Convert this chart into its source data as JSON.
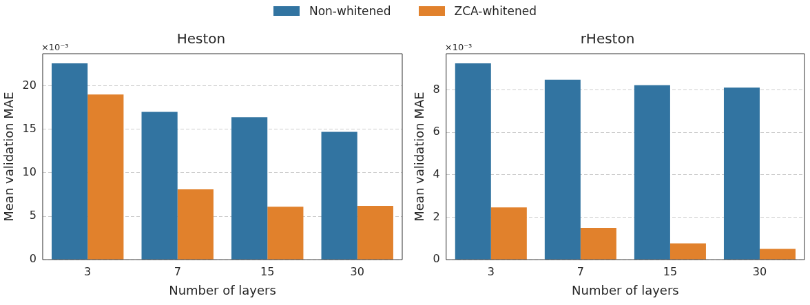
{
  "chart_data": [
    {
      "type": "bar",
      "title": "Heston",
      "xlabel": "Number of layers",
      "ylabel": "Mean validation MAE",
      "annotations": [
        "×10⁻³"
      ],
      "categories": [
        "3",
        "7",
        "15",
        "30"
      ],
      "series": [
        {
          "name": "Non-whitened",
          "color": "#3274a1",
          "values": [
            22.6,
            17.0,
            16.4,
            14.7
          ]
        },
        {
          "name": "ZCA-whitened",
          "color": "#e1812c",
          "values": [
            19.0,
            8.1,
            6.1,
            6.2
          ]
        }
      ],
      "ylim": [
        0,
        23.7
      ],
      "yticks": [
        0,
        5,
        10,
        15,
        20
      ],
      "grid": "y",
      "legend": "top"
    },
    {
      "type": "bar",
      "title": "rHeston",
      "xlabel": "Number of layers",
      "ylabel": "Mean validation MAE",
      "annotations": [
        "×10⁻³"
      ],
      "categories": [
        "3",
        "7",
        "15",
        "30"
      ],
      "series": [
        {
          "color": "#3274a1",
          "values": [
            9.25,
            8.48,
            8.22,
            8.1
          ]
        },
        {
          "color": "#e1812c",
          "values": [
            2.46,
            1.5,
            0.77,
            0.51
          ]
        }
      ],
      "ylim": [
        0,
        9.7
      ],
      "yticks": [
        0,
        2,
        4,
        6,
        8
      ],
      "grid": "y"
    }
  ]
}
